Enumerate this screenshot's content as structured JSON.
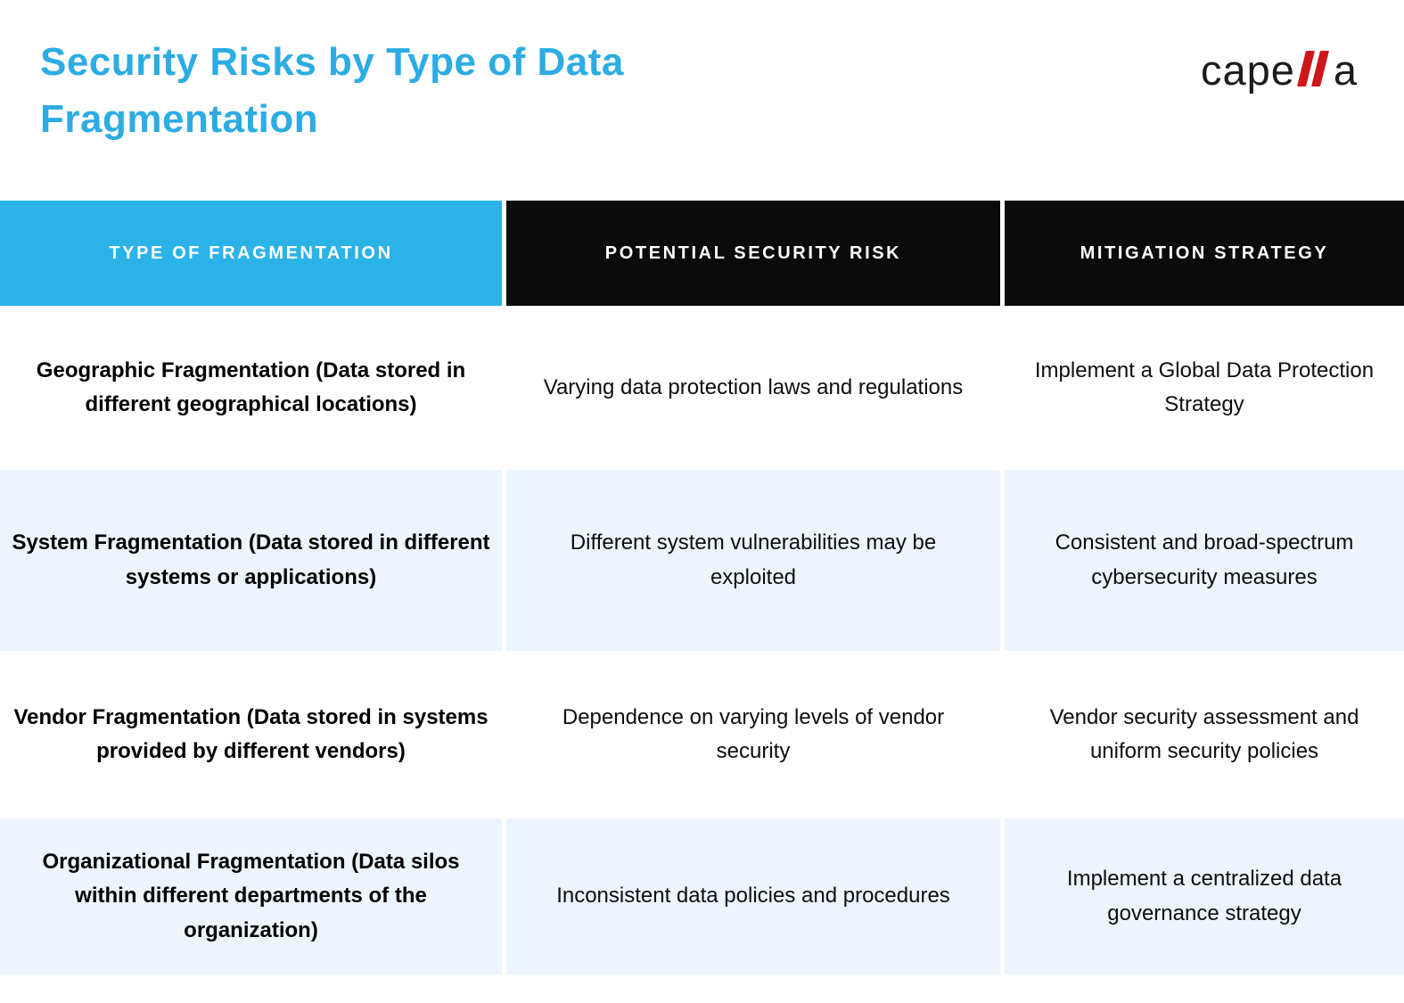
{
  "page": {
    "title": "Security Risks by Type of Data Fragmentation"
  },
  "logo": {
    "prefix": "cape",
    "slashes": "ll",
    "suffix": "a"
  },
  "colors": {
    "accent_blue": "#2BB3E8",
    "title_blue": "#2CACE3",
    "header_black": "#0B0B0B",
    "row_alt": "#EDF4FC",
    "logo_red": "#CE161C",
    "text_black": "#0D0D0D"
  },
  "table": {
    "columns": [
      {
        "label": "TYPE OF FRAGMENTATION"
      },
      {
        "label": "POTENTIAL SECURITY RISK"
      },
      {
        "label": "MITIGATION STRATEGY"
      }
    ],
    "rows": [
      {
        "type": "Geographic Fragmentation (Data stored in different geographical locations)",
        "risk": "Varying data protection laws and regulations",
        "mitigation": "Implement a Global Data Protection Strategy"
      },
      {
        "type": "System Fragmentation (Data stored in different systems or applications)",
        "risk": "Different system vulnerabilities may be exploited",
        "mitigation": "Consistent and broad-spectrum cybersecurity measures"
      },
      {
        "type": "Vendor Fragmentation (Data stored in systems provided by different vendors)",
        "risk": "Dependence on varying levels of vendor security",
        "mitigation": "Vendor security assessment and uniform security policies"
      },
      {
        "type": "Organizational Fragmentation (Data silos within different departments of the organization)",
        "risk": "Inconsistent data policies and procedures",
        "mitigation": "Implement a centralized data governance strategy"
      }
    ]
  }
}
